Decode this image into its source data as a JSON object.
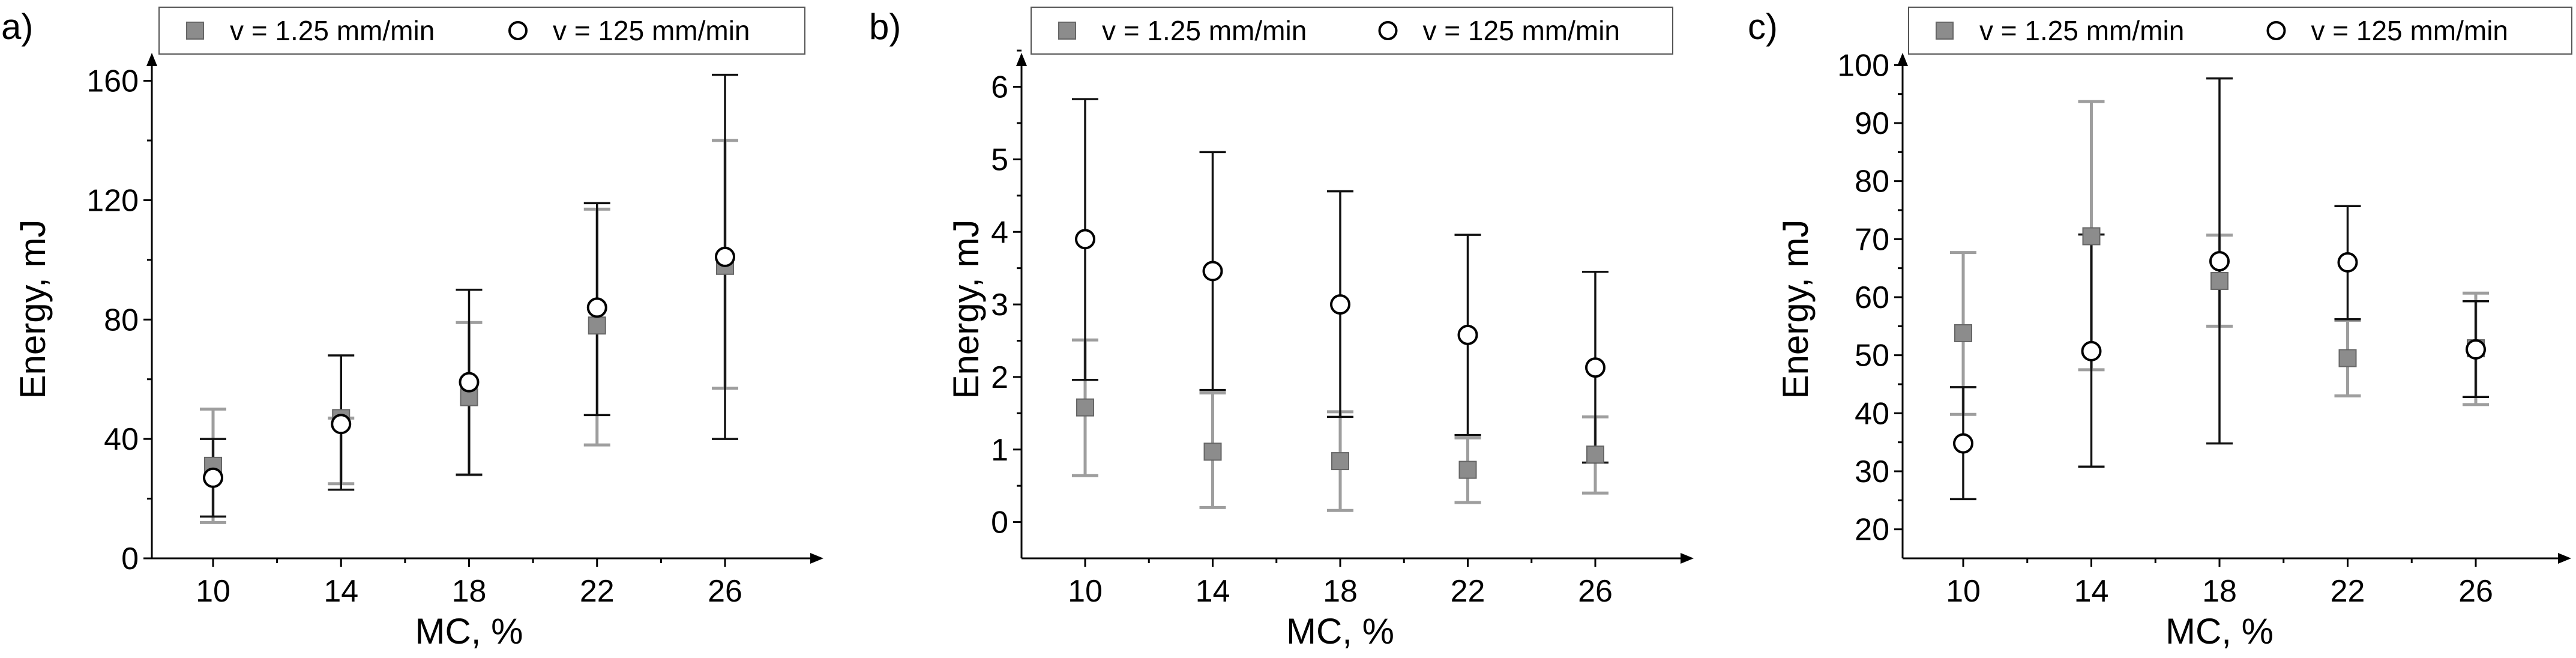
{
  "chart_data": [
    {
      "type": "scatter",
      "panel_label": "a)",
      "xlabel": "MC, %",
      "ylabel": "Energy, mJ",
      "categories": [
        "10",
        "14",
        "18",
        "22",
        "26"
      ],
      "ylim": [
        0,
        175
      ],
      "yticks": [
        0,
        40,
        80,
        120,
        160
      ],
      "grid": false,
      "legend_position": "top",
      "series": [
        {
          "name": "v = 1.25 mm/min",
          "marker": "square",
          "color": "#8c8c8c",
          "error_color": "#9e9e9e",
          "x": [
            10,
            14,
            18,
            22,
            26
          ],
          "values": [
            31,
            47,
            54,
            78,
            98
          ],
          "error_low": [
            12,
            25,
            28,
            38,
            57
          ],
          "error_high": [
            50,
            47,
            79,
            117,
            140
          ]
        },
        {
          "name": "v = 125 mm/min",
          "marker": "circle",
          "color": "#ffffff",
          "error_color": "#111111",
          "x": [
            10,
            14,
            18,
            22,
            26
          ],
          "values": [
            27,
            45,
            59,
            84,
            101
          ],
          "error_low": [
            14,
            23,
            28,
            48,
            40
          ],
          "error_high": [
            40,
            68,
            90,
            119,
            162
          ]
        }
      ]
    },
    {
      "type": "scatter",
      "panel_label": "b)",
      "xlabel": "MC, %",
      "ylabel": "Energy, mJ",
      "categories": [
        "10",
        "14",
        "18",
        "22",
        "26"
      ],
      "ylim": [
        -0.5,
        6.7
      ],
      "yticks": [
        0,
        1,
        2,
        3,
        4,
        5,
        6
      ],
      "grid": false,
      "legend_position": "top",
      "series": [
        {
          "name": "v = 1.25 mm/min",
          "marker": "square",
          "color": "#8c8c8c",
          "error_color": "#9e9e9e",
          "x": [
            10,
            14,
            18,
            22,
            26
          ],
          "values": [
            1.58,
            0.97,
            0.84,
            0.72,
            0.93
          ],
          "error_low": [
            0.64,
            0.2,
            0.16,
            0.27,
            0.4
          ],
          "error_high": [
            2.51,
            1.78,
            1.52,
            1.16,
            1.45
          ]
        },
        {
          "name": "v = 125 mm/min",
          "marker": "circle",
          "color": "#ffffff",
          "error_color": "#111111",
          "x": [
            10,
            14,
            18,
            22,
            26
          ],
          "values": [
            3.9,
            3.46,
            3.0,
            2.58,
            2.13
          ],
          "error_low": [
            1.96,
            1.82,
            1.45,
            1.2,
            0.82
          ],
          "error_high": [
            5.83,
            5.1,
            4.56,
            3.96,
            3.45
          ]
        }
      ]
    },
    {
      "type": "scatter",
      "panel_label": "c)",
      "xlabel": "MC, %",
      "ylabel": "Energy, mJ",
      "categories": [
        "10",
        "14",
        "18",
        "22",
        "26"
      ],
      "ylim": [
        15,
        105
      ],
      "yticks": [
        20,
        30,
        40,
        50,
        60,
        70,
        80,
        90,
        100
      ],
      "grid": false,
      "legend_position": "top",
      "series": [
        {
          "name": "v = 1.25 mm/min",
          "marker": "square",
          "color": "#8c8c8c",
          "error_color": "#9e9e9e",
          "x": [
            10,
            14,
            18,
            22,
            26
          ],
          "values": [
            53.8,
            70.5,
            62.8,
            49.5,
            51.2
          ],
          "error_low": [
            39.8,
            47.5,
            55.0,
            43.0,
            41.5
          ],
          "error_high": [
            67.7,
            93.7,
            70.7,
            56.0,
            60.7
          ]
        },
        {
          "name": "v = 125 mm/min",
          "marker": "circle",
          "color": "#ffffff",
          "error_color": "#111111",
          "x": [
            10,
            14,
            18,
            22,
            26
          ],
          "values": [
            34.8,
            50.7,
            66.2,
            66.0,
            51.0
          ],
          "error_low": [
            25.2,
            30.8,
            34.8,
            56.2,
            42.8
          ],
          "error_high": [
            44.5,
            70.8,
            97.7,
            75.7,
            59.3
          ]
        }
      ]
    }
  ]
}
